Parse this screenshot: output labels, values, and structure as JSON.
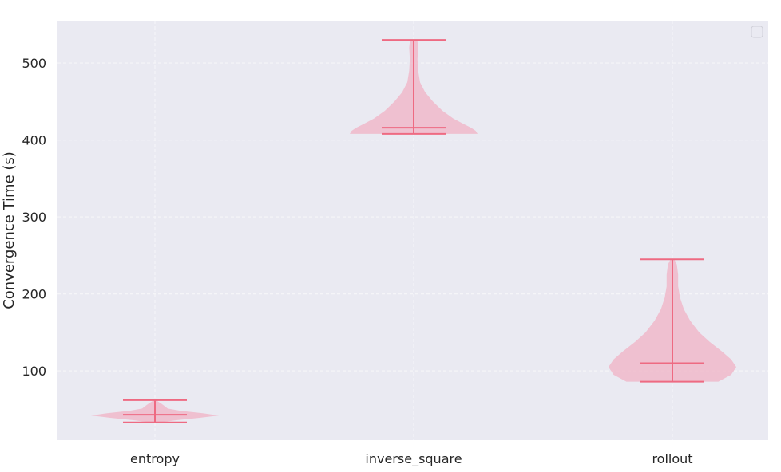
{
  "chart_data": {
    "type": "violin",
    "ylabel": "Convergence Time (s)",
    "xlabel": "",
    "ylim": [
      10,
      555
    ],
    "yticks": [
      "100",
      "200",
      "300",
      "400",
      "500"
    ],
    "grid": true,
    "legend": "top-right",
    "categories": [
      "entropy",
      "inverse_square",
      "rollout"
    ],
    "violins": [
      {
        "category": "entropy",
        "min": 33,
        "median": 43,
        "max": 62,
        "density": [
          [
            33,
            0.08
          ],
          [
            36,
            0.35
          ],
          [
            39,
            0.7
          ],
          [
            42,
            1.0
          ],
          [
            45,
            0.75
          ],
          [
            48,
            0.4
          ],
          [
            51,
            0.2
          ],
          [
            55,
            0.14
          ],
          [
            58,
            0.09
          ],
          [
            60,
            0.05
          ],
          [
            62,
            0.02
          ]
        ]
      },
      {
        "category": "inverse_square",
        "min": 408,
        "median": 416,
        "max": 530,
        "density": [
          [
            408,
            1.0
          ],
          [
            412,
            0.97
          ],
          [
            416,
            0.9
          ],
          [
            420,
            0.8
          ],
          [
            428,
            0.62
          ],
          [
            438,
            0.45
          ],
          [
            450,
            0.3
          ],
          [
            462,
            0.18
          ],
          [
            475,
            0.1
          ],
          [
            490,
            0.07
          ],
          [
            505,
            0.06
          ],
          [
            520,
            0.07
          ],
          [
            528,
            0.06
          ],
          [
            530,
            0.03
          ]
        ]
      },
      {
        "category": "rollout",
        "min": 86,
        "median": 110,
        "max": 245,
        "density": [
          [
            86,
            0.72
          ],
          [
            95,
            0.92
          ],
          [
            105,
            1.0
          ],
          [
            115,
            0.92
          ],
          [
            125,
            0.78
          ],
          [
            138,
            0.58
          ],
          [
            150,
            0.42
          ],
          [
            165,
            0.28
          ],
          [
            180,
            0.18
          ],
          [
            195,
            0.12
          ],
          [
            210,
            0.09
          ],
          [
            225,
            0.09
          ],
          [
            238,
            0.07
          ],
          [
            245,
            0.03
          ]
        ]
      }
    ],
    "colors": {
      "body": "#f0b8ca",
      "lines": "#ee6a82",
      "background": "#eaeaf2",
      "grid": "#f5f5f8"
    }
  }
}
